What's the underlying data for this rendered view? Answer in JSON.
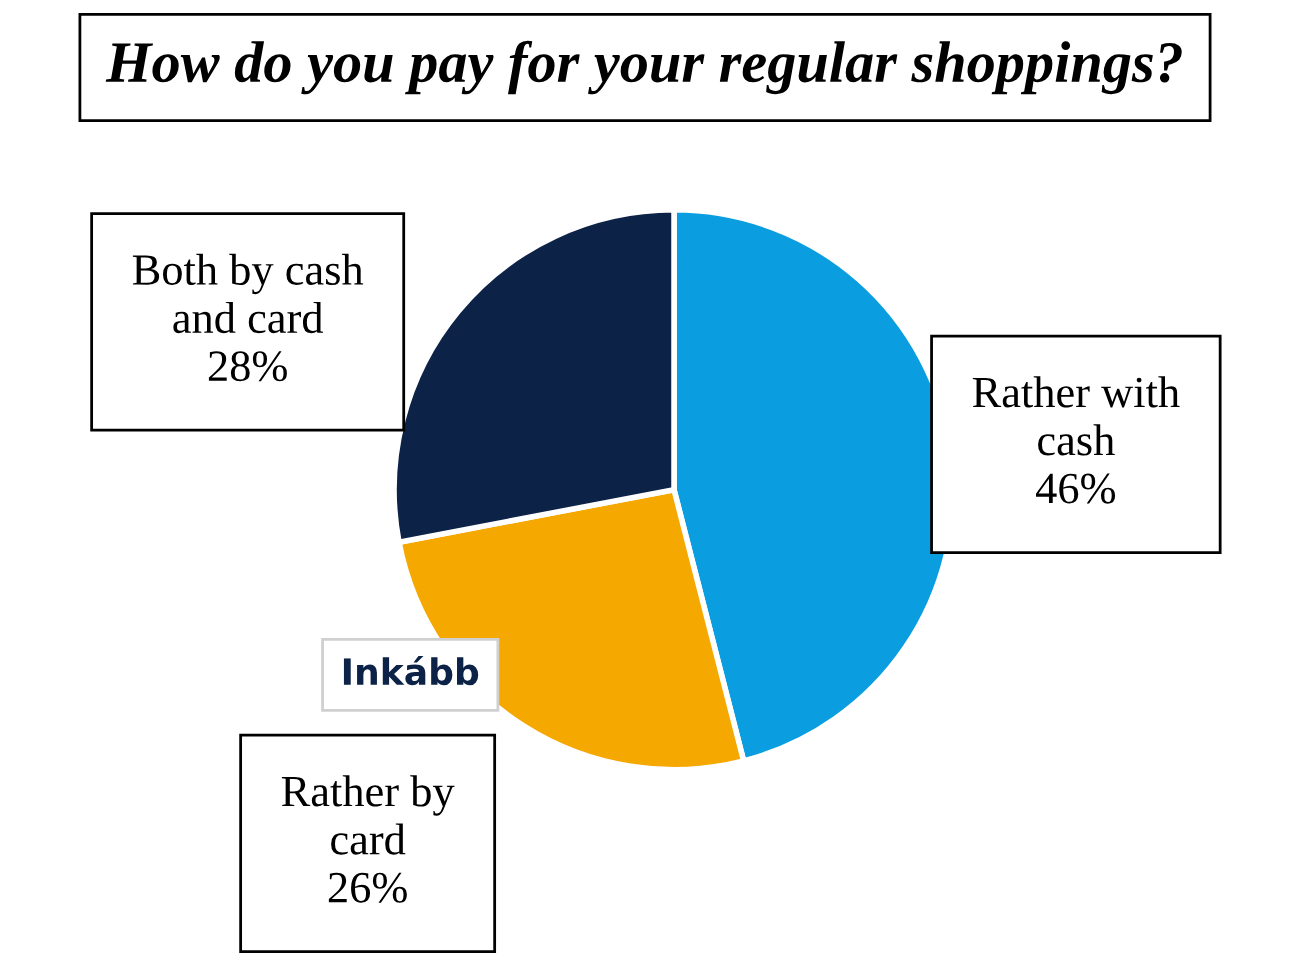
{
  "chart_data": {
    "type": "pie",
    "title": "How do you pay for your regular shoppings?",
    "categories": [
      "Rather with cash",
      "Rather by card",
      "Both by cash and card"
    ],
    "values": [
      46,
      26,
      28
    ],
    "value_labels": [
      "46%",
      "26%",
      "28%"
    ],
    "colors": [
      "#0a9ee0",
      "#f5a800",
      "#0c2246"
    ],
    "annotations": [
      "Inkább"
    ]
  }
}
